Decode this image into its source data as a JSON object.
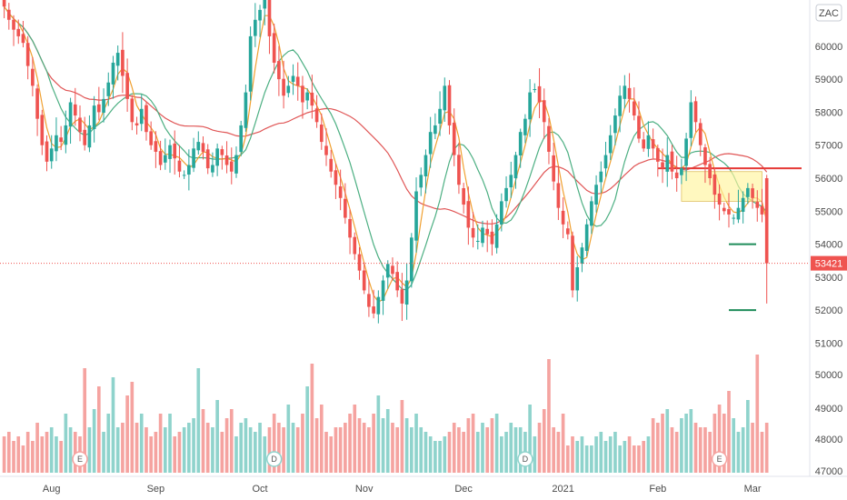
{
  "chart_data": {
    "type": "candlestick",
    "symbol_badge": "ZAC",
    "current_price_label": "53421",
    "current_price": 53421,
    "colors": {
      "up": "#26a69a",
      "down": "#ef5350",
      "vol_up": "#8fd3cc",
      "vol_down": "#f5a3a0",
      "ma_fast": "#f0a030",
      "ma_mid": "#4caf82",
      "ma_slow": "#e05555"
    },
    "y_axis": {
      "range": [
        50600,
        61400
      ],
      "ticks": [
        60000,
        59000,
        58000,
        57000,
        56000,
        55000,
        54000,
        53000,
        52000,
        51000
      ],
      "tick_labels": [
        "60000",
        "59000",
        "58000",
        "57000",
        "56000",
        "55000",
        "54000",
        "53000",
        "52000",
        "51000"
      ]
    },
    "volume_axis": {
      "ticks": [
        50000,
        49000,
        48000,
        47000
      ],
      "tick_labels": [
        "50000",
        "49000",
        "48000",
        "47000"
      ]
    },
    "x_axis": {
      "labels": [
        {
          "text": "Aug",
          "index": 10
        },
        {
          "text": "Sep",
          "index": 32
        },
        {
          "text": "Oct",
          "index": 54
        },
        {
          "text": "Nov",
          "index": 76
        },
        {
          "text": "Dec",
          "index": 97
        },
        {
          "text": "2021",
          "index": 118
        },
        {
          "text": "Feb",
          "index": 138
        },
        {
          "text": "Mar",
          "index": 158
        }
      ]
    },
    "events": [
      {
        "text": "E",
        "index": 16
      },
      {
        "text": "D",
        "index": 57
      },
      {
        "text": "D",
        "index": 110
      },
      {
        "text": "E",
        "index": 151
      }
    ],
    "closes": [
      61200,
      60800,
      60500,
      60300,
      60100,
      59400,
      58800,
      57800,
      57000,
      56500,
      56900,
      57300,
      57100,
      57600,
      58300,
      57900,
      57400,
      57000,
      57600,
      58200,
      58000,
      58400,
      58900,
      59500,
      59800,
      59100,
      58400,
      57700,
      57600,
      58100,
      57400,
      57000,
      56800,
      56400,
      56700,
      57000,
      56600,
      56200,
      56100,
      56400,
      56900,
      57100,
      56800,
      56300,
      56400,
      56900,
      56700,
      56400,
      56200,
      56700,
      57600,
      58600,
      60300,
      60800,
      61100,
      61500,
      60300,
      59500,
      59000,
      58500,
      58800,
      59100,
      58800,
      58300,
      58600,
      58200,
      57700,
      57100,
      56700,
      56200,
      55800,
      55400,
      54800,
      54200,
      53700,
      53200,
      52600,
      52100,
      51900,
      52400,
      52900,
      53400,
      53100,
      52600,
      52200,
      52900,
      54200,
      55600,
      56100,
      56700,
      57400,
      57600,
      58100,
      58800,
      57600,
      56700,
      55800,
      55200,
      54500,
      54200,
      54100,
      54500,
      54300,
      54000,
      54600,
      55300,
      55700,
      56100,
      56700,
      57400,
      57800,
      58600,
      58700,
      58300,
      57700,
      56800,
      55900,
      55100,
      54600,
      54300,
      52600,
      53300,
      53900,
      54600,
      55300,
      55800,
      56200,
      56700,
      57300,
      57900,
      58500,
      58800,
      58400,
      57900,
      57200,
      56900,
      57300,
      56900,
      56500,
      56300,
      56700,
      56200,
      56000,
      56300,
      57200,
      58300,
      57700,
      57000,
      56400,
      56000,
      55500,
      55200,
      55000,
      54900,
      54800,
      55100,
      55400,
      55700,
      55400,
      55100,
      54900,
      53421
    ],
    "ohlc": [],
    "volumes": [
      0.8,
      0.9,
      0.7,
      0.8,
      0.6,
      0.9,
      0.7,
      1.1,
      0.8,
      0.9,
      1.0,
      0.8,
      0.7,
      1.3,
      1.0,
      0.9,
      0.8,
      2.3,
      1.0,
      1.4,
      1.9,
      0.9,
      1.3,
      2.1,
      1.0,
      1.1,
      1.7,
      2.0,
      1.1,
      1.3,
      1.0,
      0.8,
      0.9,
      1.3,
      1.0,
      1.3,
      0.8,
      0.9,
      1.0,
      1.1,
      1.2,
      2.3,
      1.4,
      1.1,
      1.0,
      1.6,
      0.9,
      1.2,
      1.4,
      0.8,
      1.1,
      1.2,
      1.0,
      0.9,
      1.1,
      0.8,
      1.0,
      1.3,
      1.1,
      1.0,
      1.5,
      1.1,
      1.0,
      1.3,
      1.9,
      2.4,
      1.2,
      1.5,
      0.9,
      0.8,
      1.0,
      1.0,
      1.1,
      1.3,
      1.5,
      1.2,
      1.1,
      1.0,
      1.3,
      1.7,
      1.2,
      1.4,
      1.1,
      1.0,
      1.6,
      1.2,
      1.0,
      1.3,
      1.0,
      0.9,
      0.8,
      0.7,
      0.7,
      0.8,
      0.9,
      1.1,
      1.0,
      0.9,
      1.2,
      1.3,
      0.9,
      1.1,
      1.0,
      1.2,
      1.3,
      0.8,
      0.9,
      1.1,
      1.0,
      1.0,
      0.9,
      1.5,
      0.8,
      1.1,
      1.4,
      2.5,
      1.0,
      0.9,
      1.3,
      0.6,
      0.8,
      0.7,
      0.8,
      0.6,
      0.6,
      0.8,
      0.9,
      0.7,
      0.8,
      0.9,
      0.6,
      0.7,
      0.8,
      0.6,
      0.6,
      0.7,
      0.8,
      1.2,
      1.1,
      1.3,
      1.4,
      1.0,
      0.9,
      1.2,
      1.3,
      1.4,
      1.1,
      1.0,
      1.0,
      0.9,
      1.3,
      1.5,
      1.3,
      1.8,
      1.2,
      0.9,
      1.0,
      1.6,
      1.1,
      2.6,
      0.9,
      1.1
    ],
    "lines": [
      {
        "name": "",
        "color": "#e05555",
        "kind": "slow"
      },
      {
        "name": "",
        "color": "#4caf82",
        "kind": "mid"
      },
      {
        "name": "",
        "color": "#f0a030",
        "kind": "fast"
      }
    ],
    "annotations": {
      "resistance_price": 56300,
      "support_price_1": 54000,
      "support_price_2": 52000,
      "range_box": {
        "from_index": 143,
        "to_index": 160,
        "high": 56200,
        "low": 55300
      },
      "resistance_from_index": 138,
      "support_from_index": 153
    }
  }
}
